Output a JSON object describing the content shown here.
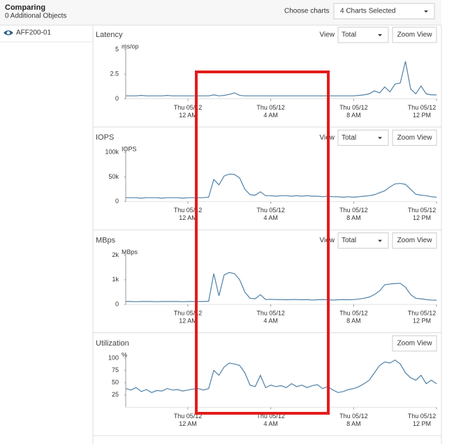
{
  "header": {
    "title": "Comparing",
    "subtitle": "0 Additional Objects",
    "choose_label": "Choose charts",
    "choose_value": "4 Charts Selected"
  },
  "objects": [
    {
      "label": "AFF200-01"
    }
  ],
  "panels": [
    {
      "view_label": "View",
      "view_value": "Total",
      "zoom_label": "Zoom View"
    },
    {
      "view_label": "View",
      "view_value": "Total",
      "zoom_label": "Zoom View"
    },
    {
      "view_label": "View",
      "view_value": "Total",
      "zoom_label": "Zoom View"
    },
    {
      "zoom_label": "Zoom View"
    }
  ],
  "chart_data": [
    {
      "type": "line",
      "title": "Latency",
      "y_label": "ms/op",
      "color": "#4f81a8",
      "xlim": [
        -3,
        12
      ],
      "ylim": [
        0,
        5
      ],
      "yticks": [
        0,
        2.5,
        5
      ],
      "xticks": [
        {
          "value": 0,
          "label": [
            "Thu 05/12",
            "12 AM"
          ]
        },
        {
          "value": 4,
          "label": [
            "Thu 05/12",
            "4 AM"
          ]
        },
        {
          "value": 8,
          "label": [
            "Thu 05/12",
            "8 AM"
          ]
        },
        {
          "value": 12,
          "label": [
            "Thu 05/12",
            "12 PM"
          ]
        }
      ],
      "x": [
        -3,
        -2.75,
        -2.5,
        -2.25,
        -2,
        -1.75,
        -1.5,
        -1.25,
        -1,
        -0.75,
        -0.5,
        -0.25,
        0,
        0.25,
        0.5,
        0.75,
        1,
        1.25,
        1.5,
        1.75,
        2,
        2.25,
        2.5,
        2.75,
        3,
        3.25,
        3.5,
        3.75,
        4,
        4.25,
        4.5,
        4.75,
        5,
        5.25,
        5.5,
        5.75,
        6,
        6.25,
        6.5,
        6.75,
        7,
        7.25,
        7.5,
        7.75,
        8,
        8.25,
        8.5,
        8.75,
        9,
        9.25,
        9.5,
        9.75,
        10,
        10.25,
        10.5,
        10.75,
        11,
        11.25,
        11.5,
        11.75,
        12
      ],
      "values": [
        0.3,
        0.3,
        0.3,
        0.35,
        0.3,
        0.3,
        0.3,
        0.3,
        0.35,
        0.3,
        0.3,
        0.3,
        0.3,
        0.3,
        0.3,
        0.3,
        0.3,
        0.4,
        0.3,
        0.35,
        0.45,
        0.6,
        0.35,
        0.3,
        0.3,
        0.3,
        0.3,
        0.3,
        0.3,
        0.3,
        0.3,
        0.3,
        0.3,
        0.3,
        0.3,
        0.3,
        0.3,
        0.3,
        0.3,
        0.3,
        0.3,
        0.3,
        0.3,
        0.3,
        0.3,
        0.35,
        0.4,
        0.5,
        0.8,
        0.6,
        1.2,
        0.7,
        1.5,
        1.6,
        3.8,
        1.0,
        0.5,
        1.3,
        0.5,
        0.4,
        0.4
      ]
    },
    {
      "type": "line",
      "title": "IOPS",
      "y_label": "IOPS",
      "color": "#4f81a8",
      "xlim": [
        -3,
        12
      ],
      "ylim": [
        0,
        100000
      ],
      "yticks": [
        0,
        {
          "value": 50000,
          "label": "50k"
        },
        {
          "value": 100000,
          "label": "100k"
        }
      ],
      "xticks": [
        {
          "value": 0,
          "label": [
            "Thu 05/12",
            "12 AM"
          ]
        },
        {
          "value": 4,
          "label": [
            "Thu 05/12",
            "4 AM"
          ]
        },
        {
          "value": 8,
          "label": [
            "Thu 05/12",
            "8 AM"
          ]
        },
        {
          "value": 12,
          "label": [
            "Thu 05/12",
            "12 PM"
          ]
        }
      ],
      "x": [
        -3,
        -2.75,
        -2.5,
        -2.25,
        -2,
        -1.75,
        -1.5,
        -1.25,
        -1,
        -0.75,
        -0.5,
        -0.25,
        0,
        0.25,
        0.5,
        0.75,
        1,
        1.25,
        1.5,
        1.75,
        2,
        2.25,
        2.5,
        2.75,
        3,
        3.25,
        3.5,
        3.75,
        4,
        4.25,
        4.5,
        4.75,
        5,
        5.25,
        5.5,
        5.75,
        6,
        6.25,
        6.5,
        6.75,
        7,
        7.25,
        7.5,
        7.75,
        8,
        8.25,
        8.5,
        8.75,
        9,
        9.25,
        9.5,
        9.75,
        10,
        10.25,
        10.5,
        10.75,
        11,
        11.25,
        11.5,
        11.75,
        12
      ],
      "values": [
        8000,
        8000,
        8000,
        7000,
        8000,
        8000,
        8000,
        7000,
        8000,
        8000,
        8000,
        7000,
        8000,
        8000,
        8000,
        8000,
        9000,
        45000,
        34000,
        52000,
        56000,
        55000,
        48000,
        25000,
        14000,
        13000,
        20000,
        12000,
        12000,
        11000,
        12000,
        12000,
        11000,
        12000,
        11000,
        12000,
        11000,
        11000,
        10000,
        11000,
        10000,
        10000,
        9000,
        10000,
        9000,
        10000,
        11000,
        12000,
        14000,
        18000,
        22000,
        30000,
        36000,
        37000,
        35000,
        25000,
        15000,
        13000,
        12000,
        10000,
        9000
      ]
    },
    {
      "type": "line",
      "title": "MBps",
      "y_label": "MBps",
      "color": "#4f81a8",
      "xlim": [
        -3,
        12
      ],
      "ylim": [
        0,
        2000
      ],
      "yticks": [
        0,
        {
          "value": 1000,
          "label": "1k"
        },
        {
          "value": 2000,
          "label": "2k"
        }
      ],
      "xticks": [
        {
          "value": 0,
          "label": [
            "Thu 05/12",
            "12 AM"
          ]
        },
        {
          "value": 4,
          "label": [
            "Thu 05/12",
            "4 AM"
          ]
        },
        {
          "value": 8,
          "label": [
            "Thu 05/12",
            "8 AM"
          ]
        },
        {
          "value": 12,
          "label": [
            "Thu 05/12",
            "12 PM"
          ]
        }
      ],
      "x": [
        -3,
        -2.75,
        -2.5,
        -2.25,
        -2,
        -1.75,
        -1.5,
        -1.25,
        -1,
        -0.75,
        -0.5,
        -0.25,
        0,
        0.25,
        0.5,
        0.75,
        1,
        1.25,
        1.5,
        1.75,
        2,
        2.25,
        2.5,
        2.75,
        3,
        3.25,
        3.5,
        3.75,
        4,
        4.25,
        4.5,
        4.75,
        5,
        5.25,
        5.5,
        5.75,
        6,
        6.25,
        6.5,
        6.75,
        7,
        7.25,
        7.5,
        7.75,
        8,
        8.25,
        8.5,
        8.75,
        9,
        9.25,
        9.5,
        9.75,
        10,
        10.25,
        10.5,
        10.75,
        11,
        11.25,
        11.5,
        11.75,
        12
      ],
      "values": [
        120,
        120,
        110,
        120,
        120,
        120,
        110,
        120,
        120,
        120,
        120,
        110,
        120,
        120,
        120,
        120,
        130,
        1250,
        350,
        1200,
        1300,
        1250,
        1000,
        500,
        250,
        230,
        400,
        200,
        210,
        200,
        200,
        190,
        200,
        200,
        190,
        200,
        180,
        190,
        200,
        190,
        180,
        190,
        200,
        190,
        200,
        220,
        250,
        300,
        400,
        550,
        800,
        830,
        850,
        860,
        700,
        400,
        250,
        230,
        200,
        180,
        170
      ]
    },
    {
      "type": "line",
      "title": "Utilization",
      "y_label": "%",
      "color": "#4f81a8",
      "xlim": [
        -3,
        12
      ],
      "ylim": [
        0,
        100
      ],
      "yticks": [
        25,
        50,
        75,
        100
      ],
      "xticks": [
        {
          "value": 0,
          "label": [
            "Thu 05/12",
            "12 AM"
          ]
        },
        {
          "value": 4,
          "label": [
            "Thu 05/12",
            "4 AM"
          ]
        },
        {
          "value": 8,
          "label": [
            "Thu 05/12",
            "8 AM"
          ]
        },
        {
          "value": 12,
          "label": [
            "Thu 05/12",
            "12 PM"
          ]
        }
      ],
      "x": [
        -3,
        -2.75,
        -2.5,
        -2.25,
        -2,
        -1.75,
        -1.5,
        -1.25,
        -1,
        -0.75,
        -0.5,
        -0.25,
        0,
        0.25,
        0.5,
        0.75,
        1,
        1.25,
        1.5,
        1.75,
        2,
        2.25,
        2.5,
        2.75,
        3,
        3.25,
        3.5,
        3.75,
        4,
        4.25,
        4.5,
        4.75,
        5,
        5.25,
        5.5,
        5.75,
        6,
        6.25,
        6.5,
        6.75,
        7,
        7.25,
        7.5,
        7.75,
        8,
        8.25,
        8.5,
        8.75,
        9,
        9.25,
        9.5,
        9.75,
        10,
        10.25,
        10.5,
        10.75,
        11,
        11.25,
        11.5,
        11.75,
        12
      ],
      "values": [
        38,
        35,
        40,
        32,
        36,
        30,
        34,
        33,
        38,
        35,
        36,
        33,
        35,
        37,
        38,
        35,
        38,
        75,
        65,
        82,
        90,
        88,
        85,
        70,
        45,
        42,
        65,
        40,
        45,
        42,
        44,
        40,
        48,
        42,
        45,
        40,
        44,
        46,
        38,
        42,
        35,
        30,
        32,
        36,
        38,
        42,
        48,
        55,
        70,
        85,
        92,
        90,
        96,
        88,
        70,
        60,
        55,
        65,
        48,
        55,
        48
      ]
    }
  ]
}
